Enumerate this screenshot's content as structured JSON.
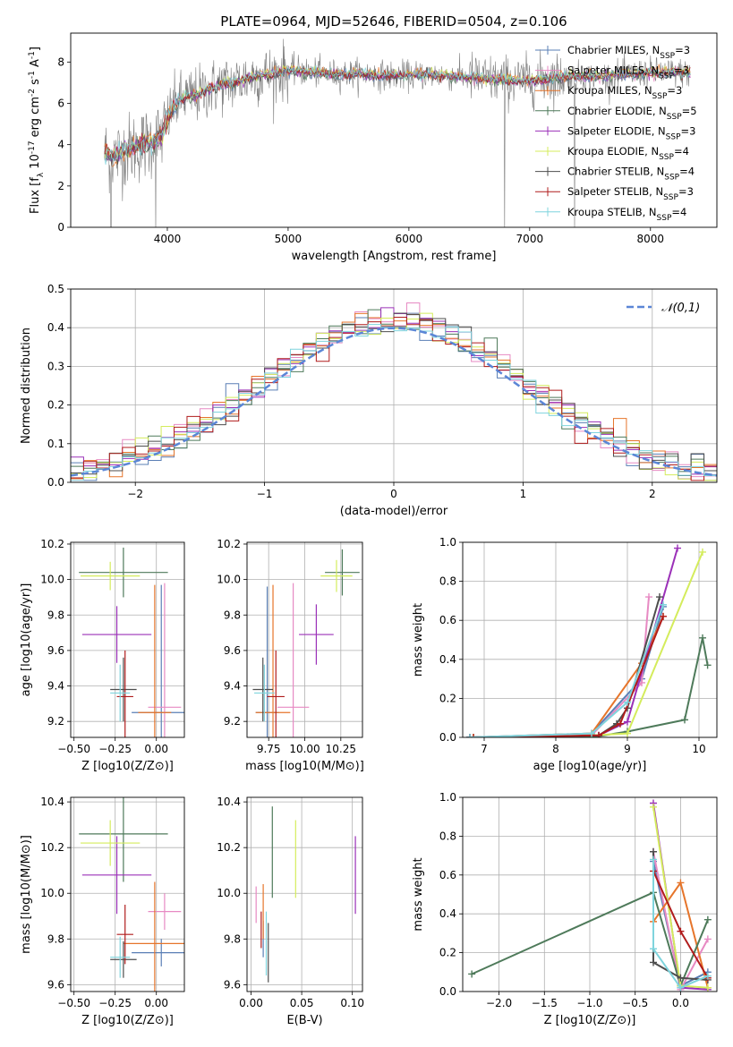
{
  "title": "PLATE=0964, MJD=52646, FIBERID=0504, z=0.106",
  "chart_data": [
    {
      "id": "spectrum",
      "type": "line",
      "xlabel": "wavelength [Angstrom, rest frame]",
      "ylabel": "Flux [f_λ 10^-17 erg cm^-2 s^-1 A^-1]",
      "xlim": [
        3200,
        8550
      ],
      "ylim": [
        0,
        9.4
      ],
      "xticks": [
        4000,
        5000,
        6000,
        7000,
        8000
      ],
      "yticks": [
        0,
        2,
        4,
        6,
        8
      ],
      "grid": false,
      "legend_position": "top-right",
      "observed_color": "#808080",
      "continuum": {
        "x": [
          3480,
          3560,
          3650,
          3750,
          3850,
          3950,
          4050,
          4150,
          4250,
          4350,
          4450,
          4550,
          4700,
          4850,
          5000,
          5200,
          5400,
          5600,
          5800,
          6000,
          6200,
          6400,
          6600,
          6800,
          7000,
          7200,
          7400,
          7600,
          7800,
          8000,
          8200,
          8330
        ],
        "y": [
          3.6,
          3.4,
          3.7,
          3.9,
          4.1,
          4.4,
          5.9,
          6.3,
          6.4,
          6.7,
          6.9,
          7.0,
          7.3,
          7.4,
          7.6,
          7.5,
          7.4,
          7.45,
          7.35,
          7.35,
          7.4,
          7.3,
          7.2,
          7.1,
          7.1,
          7.25,
          7.3,
          7.3,
          7.4,
          7.5,
          7.5,
          7.45
        ]
      },
      "series": [
        {
          "name": "Chabrier MILES, N_SSP=3",
          "color": "#5a7fb5"
        },
        {
          "name": "Salpeter MILES, N_SSP=3",
          "color": "#e78ac3"
        },
        {
          "name": "Kroupa MILES, N_SSP=3",
          "color": "#e6752b"
        },
        {
          "name": "Chabrier ELODIE, N_SSP=5",
          "color": "#4e7a5a"
        },
        {
          "name": "Salpeter ELODIE, N_SSP=3",
          "color": "#9b30b8"
        },
        {
          "name": "Kroupa ELODIE, N_SSP=4",
          "color": "#d4ec5c"
        },
        {
          "name": "Chabrier STELIB, N_SSP=4",
          "color": "#4d4d4d"
        },
        {
          "name": "Salpeter STELIB, N_SSP=3",
          "color": "#b01c1c"
        },
        {
          "name": "Kroupa STELIB, N_SSP=4",
          "color": "#7fd4dd"
        }
      ]
    },
    {
      "id": "residual-hist",
      "type": "histogram",
      "xlabel": "(data-model)/error",
      "ylabel": "Normed distribution",
      "xlim": [
        -2.5,
        2.5
      ],
      "ylim": [
        0,
        0.5
      ],
      "xticks": [
        -2,
        -1,
        0,
        1,
        2
      ],
      "yticks": [
        0.0,
        0.1,
        0.2,
        0.3,
        0.4,
        0.5
      ],
      "grid": true,
      "legend_position": "top-right",
      "bin_width": 0.1,
      "reference_curve": {
        "name": "𝒩(0,1)",
        "color": "#5b86d6",
        "style": "dashed",
        "mean": 0,
        "sigma": 1
      }
    },
    {
      "id": "age-vs-Z",
      "type": "errorbar",
      "xlabel": "Z [log10(Z/Z⊙)]",
      "ylabel": "age  [log10(age/yr)]",
      "xlim": [
        -0.52,
        0.17
      ],
      "ylim": [
        9.11,
        10.21
      ],
      "xticks": [
        -0.5,
        -0.25,
        0.0
      ],
      "xtick_labels": [
        "−0.50",
        "−0.25",
        "0.00"
      ],
      "yticks": [
        9.2,
        9.4,
        9.6,
        9.8,
        10.0,
        10.2
      ],
      "grid": true,
      "points": [
        {
          "series": 0,
          "x": 0.03,
          "xerr": 0.18,
          "y": 9.25,
          "yerr": 0.72
        },
        {
          "series": 1,
          "x": 0.05,
          "xerr": 0.1,
          "y": 9.28,
          "yerr": 0.7
        },
        {
          "series": 2,
          "x": -0.01,
          "xerr": 0.1,
          "y": 9.25,
          "yerr": 0.72
        },
        {
          "series": 3,
          "x": -0.2,
          "xerr": 0.27,
          "y": 10.04,
          "yerr": 0.14
        },
        {
          "series": 4,
          "x": -0.24,
          "xerr": 0.21,
          "y": 9.69,
          "yerr": 0.16
        },
        {
          "series": 5,
          "x": -0.28,
          "xerr": 0.18,
          "y": 10.02,
          "yerr": 0.08
        },
        {
          "series": 6,
          "x": -0.2,
          "xerr": 0.08,
          "y": 9.38,
          "yerr": 0.18
        },
        {
          "series": 7,
          "x": -0.19,
          "xerr": 0.05,
          "y": 9.34,
          "yerr": 0.26
        },
        {
          "series": 8,
          "x": -0.22,
          "xerr": 0.06,
          "y": 9.36,
          "yerr": 0.16
        }
      ]
    },
    {
      "id": "age-vs-mass",
      "type": "errorbar",
      "xlabel": "mass [log10(M/M⊙)]",
      "ylabel": "",
      "xlim": [
        9.6,
        10.4
      ],
      "ylim": [
        9.11,
        10.21
      ],
      "xticks": [
        9.75,
        10.0,
        10.25
      ],
      "xtick_labels": [
        "9.75",
        "10.00",
        "10.25"
      ],
      "yticks": [
        9.2,
        9.4,
        9.6,
        9.8,
        10.0,
        10.2
      ],
      "grid": true,
      "points": [
        {
          "series": 0,
          "x": 9.74,
          "xerr": 0.08,
          "y": 9.25,
          "yerr": 0.71
        },
        {
          "series": 1,
          "x": 9.92,
          "xerr": 0.11,
          "y": 9.28,
          "yerr": 0.7
        },
        {
          "series": 2,
          "x": 9.78,
          "xerr": 0.12,
          "y": 9.25,
          "yerr": 0.72
        },
        {
          "series": 3,
          "x": 10.26,
          "xerr": 0.12,
          "y": 10.04,
          "yerr": 0.13
        },
        {
          "series": 4,
          "x": 10.08,
          "xerr": 0.12,
          "y": 9.69,
          "yerr": 0.17
        },
        {
          "series": 5,
          "x": 10.22,
          "xerr": 0.11,
          "y": 10.02,
          "yerr": 0.09
        },
        {
          "series": 6,
          "x": 9.71,
          "xerr": 0.07,
          "y": 9.38,
          "yerr": 0.18
        },
        {
          "series": 7,
          "x": 9.8,
          "xerr": 0.06,
          "y": 9.34,
          "yerr": 0.26
        },
        {
          "series": 8,
          "x": 9.72,
          "xerr": 0.07,
          "y": 9.36,
          "yerr": 0.16
        }
      ]
    },
    {
      "id": "weight-vs-age",
      "type": "line",
      "xlabel": "age  [log10(age/yr)]",
      "ylabel": "mass weight",
      "xlim": [
        6.7,
        10.25
      ],
      "ylim": [
        0,
        1.0
      ],
      "xticks": [
        7,
        8,
        9,
        10
      ],
      "yticks": [
        0.0,
        0.2,
        0.4,
        0.6,
        0.8,
        1.0
      ],
      "grid": true,
      "series_points": [
        {
          "series": 0,
          "x": [
            6.8,
            8.5,
            9.2,
            9.5
          ],
          "y": [
            0.0,
            0.02,
            0.3,
            0.67
          ]
        },
        {
          "series": 1,
          "x": [
            6.8,
            8.5,
            9.2,
            9.3
          ],
          "y": [
            0.0,
            0.01,
            0.28,
            0.72
          ]
        },
        {
          "series": 2,
          "x": [
            6.85,
            8.5,
            9.2,
            9.5
          ],
          "y": [
            0.0,
            0.02,
            0.38,
            0.62
          ]
        },
        {
          "series": 3,
          "x": [
            6.8,
            8.5,
            9.0,
            9.8,
            10.05,
            10.12
          ],
          "y": [
            0.0,
            0.0,
            0.03,
            0.09,
            0.51,
            0.37
          ]
        },
        {
          "series": 4,
          "x": [
            6.8,
            8.6,
            9.0,
            9.7
          ],
          "y": [
            0.0,
            0.01,
            0.08,
            0.97
          ]
        },
        {
          "series": 5,
          "x": [
            6.85,
            8.5,
            9.0,
            10.05
          ],
          "y": [
            0.0,
            0.01,
            0.02,
            0.95
          ]
        },
        {
          "series": 6,
          "x": [
            6.8,
            8.6,
            8.85,
            9.0,
            9.45
          ],
          "y": [
            0.0,
            0.01,
            0.07,
            0.15,
            0.72
          ]
        },
        {
          "series": 7,
          "x": [
            6.85,
            8.6,
            8.9,
            9.5
          ],
          "y": [
            0.0,
            0.01,
            0.07,
            0.62
          ]
        },
        {
          "series": 8,
          "x": [
            6.8,
            8.5,
            9.0,
            9.5
          ],
          "y": [
            0.0,
            0.02,
            0.18,
            0.68
          ]
        }
      ]
    },
    {
      "id": "mass-vs-Z",
      "type": "errorbar",
      "xlabel": "Z [log10(Z/Z⊙)]",
      "ylabel": "mass [log10(M/M⊙)]",
      "xlim": [
        -0.52,
        0.17
      ],
      "ylim": [
        9.57,
        10.42
      ],
      "xticks": [
        -0.5,
        -0.25,
        0.0
      ],
      "xtick_labels": [
        "−0.50",
        "−0.25",
        "0.00"
      ],
      "yticks": [
        9.6,
        9.8,
        10.0,
        10.2,
        10.4
      ],
      "grid": true,
      "points": [
        {
          "series": 0,
          "x": 0.03,
          "xerr": 0.18,
          "y": 9.74,
          "yerr": 0.06
        },
        {
          "series": 1,
          "x": 0.05,
          "xerr": 0.1,
          "y": 9.92,
          "yerr": 0.08
        },
        {
          "series": 2,
          "x": -0.01,
          "xerr": 0.19,
          "y": 9.78,
          "yerr": 0.27
        },
        {
          "series": 3,
          "x": -0.2,
          "xerr": 0.27,
          "y": 10.26,
          "yerr": 0.21
        },
        {
          "series": 4,
          "x": -0.24,
          "xerr": 0.21,
          "y": 10.08,
          "yerr": 0.17
        },
        {
          "series": 5,
          "x": -0.28,
          "xerr": 0.18,
          "y": 10.22,
          "yerr": 0.1
        },
        {
          "series": 6,
          "x": -0.2,
          "xerr": 0.08,
          "y": 9.71,
          "yerr": 0.08
        },
        {
          "series": 7,
          "x": -0.19,
          "xerr": 0.05,
          "y": 9.82,
          "yerr": 0.13
        },
        {
          "series": 8,
          "x": -0.22,
          "xerr": 0.06,
          "y": 9.72,
          "yerr": 0.09
        }
      ]
    },
    {
      "id": "mass-vs-ebv",
      "type": "errorbar",
      "xlabel": "E(B-V)",
      "ylabel": "",
      "xlim": [
        -0.004,
        0.11
      ],
      "ylim": [
        9.57,
        10.42
      ],
      "xticks": [
        0.0,
        0.05,
        0.1
      ],
      "xtick_labels": [
        "0.00",
        "0.05",
        "0.10"
      ],
      "yticks": [
        9.6,
        9.8,
        10.0,
        10.2,
        10.4
      ],
      "grid": true,
      "points": [
        {
          "series": 0,
          "x": 0.012,
          "xerr": 0,
          "y": 9.8,
          "yerr": 0.08
        },
        {
          "series": 1,
          "x": 0.005,
          "xerr": 0,
          "y": 9.95,
          "yerr": 0.08
        },
        {
          "series": 2,
          "x": 0.012,
          "xerr": 0,
          "y": 9.92,
          "yerr": 0.12
        },
        {
          "series": 3,
          "x": 0.021,
          "xerr": 0,
          "y": 10.18,
          "yerr": 0.2
        },
        {
          "series": 4,
          "x": 0.103,
          "xerr": 0,
          "y": 10.08,
          "yerr": 0.17
        },
        {
          "series": 5,
          "x": 0.044,
          "xerr": 0,
          "y": 10.15,
          "yerr": 0.17
        },
        {
          "series": 6,
          "x": 0.017,
          "xerr": 0,
          "y": 9.74,
          "yerr": 0.13
        },
        {
          "series": 7,
          "x": 0.01,
          "xerr": 0,
          "y": 9.84,
          "yerr": 0.08
        },
        {
          "series": 8,
          "x": 0.015,
          "xerr": 0,
          "y": 9.78,
          "yerr": 0.14
        }
      ]
    },
    {
      "id": "weight-vs-Z",
      "type": "line",
      "xlabel": "Z [log10(Z/Z⊙)]",
      "ylabel": "mass weight",
      "xlim": [
        -2.4,
        0.4
      ],
      "ylim": [
        0,
        1.0
      ],
      "xticks": [
        -2.0,
        -1.5,
        -1.0,
        -0.5,
        0.0
      ],
      "xtick_labels": [
        "−2.0",
        "−1.5",
        "−1.0",
        "−0.5",
        "0.0"
      ],
      "yticks": [
        0.0,
        0.2,
        0.4,
        0.6,
        0.8,
        1.0
      ],
      "grid": true,
      "series_points": [
        {
          "series": 0,
          "x": [
            -0.3,
            0.0,
            0.3
          ],
          "y": [
            0.67,
            0.03,
            0.1
          ]
        },
        {
          "series": 1,
          "x": [
            -0.3,
            0.0,
            0.3
          ],
          "y": [
            0.72,
            0.01,
            0.27
          ]
        },
        {
          "series": 2,
          "x": [
            -0.3,
            0.0,
            0.3
          ],
          "y": [
            0.36,
            0.56,
            0.02
          ]
        },
        {
          "series": 3,
          "x": [
            -2.3,
            -0.3,
            0.0,
            0.3
          ],
          "y": [
            0.09,
            0.51,
            0.03,
            0.37
          ]
        },
        {
          "series": 4,
          "x": [
            -0.3,
            0.0,
            0.3
          ],
          "y": [
            0.97,
            0.02,
            0.01
          ]
        },
        {
          "series": 5,
          "x": [
            -0.3,
            0.0,
            0.3
          ],
          "y": [
            0.95,
            0.03,
            0.02
          ]
        },
        {
          "series": 6,
          "x": [
            -0.3,
            -0.3,
            0.0,
            0.3
          ],
          "y": [
            0.72,
            0.15,
            0.07,
            0.06
          ]
        },
        {
          "series": 7,
          "x": [
            -0.3,
            0.0,
            0.3
          ],
          "y": [
            0.62,
            0.31,
            0.07
          ]
        },
        {
          "series": 8,
          "x": [
            -0.3,
            -0.3,
            0.0,
            0.3
          ],
          "y": [
            0.68,
            0.22,
            0.02,
            0.08
          ]
        }
      ]
    }
  ]
}
